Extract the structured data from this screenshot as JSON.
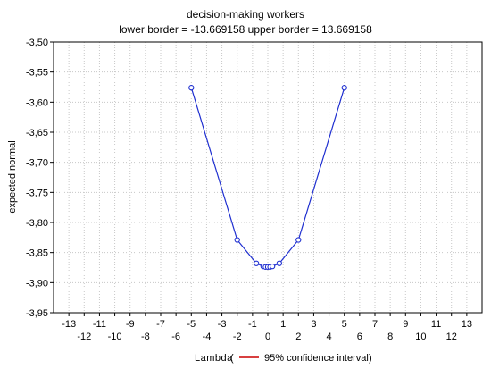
{
  "chart_data": {
    "type": "line",
    "title": "decision-making workers",
    "subtitle": "lower border = -13.669158  upper border = 13.669158",
    "xlabel": "Lambda",
    "ylabel": "expected normal",
    "legend": {
      "placement": "bottom",
      "open": "(",
      "close": ")",
      "entries": [
        {
          "label": "95% confidence interval",
          "color": "#cc0000"
        }
      ]
    },
    "xlim": [
      -14,
      14
    ],
    "ylim": [
      -3.95,
      -3.5
    ],
    "grid": true,
    "x_ticks_upper": [
      "-13",
      "-11",
      "-9",
      "-7",
      "-5",
      "-3",
      "-1",
      "1",
      "3",
      "5",
      "7",
      "9",
      "11",
      "13"
    ],
    "x_ticks_lower": [
      "-12",
      "-10",
      "-8",
      "-6",
      "-4",
      "-2",
      "0",
      "2",
      "4",
      "6",
      "8",
      "10",
      "12"
    ],
    "y_ticks": [
      "-3,50",
      "-3,55",
      "-3,60",
      "-3,65",
      "-3,70",
      "-3,75",
      "-3,80",
      "-3,85",
      "-3,90",
      "-3,95"
    ],
    "series": [
      {
        "color": "#1f2fd0",
        "x": [
          -5,
          -2,
          -0.75,
          -0.3,
          -0.15,
          0,
          0.15,
          0.3,
          0.75,
          2,
          5
        ],
        "y": [
          -3.576,
          -3.829,
          -3.868,
          -3.873,
          -3.874,
          -3.874,
          -3.874,
          -3.873,
          -3.868,
          -3.829,
          -3.576
        ]
      }
    ]
  }
}
